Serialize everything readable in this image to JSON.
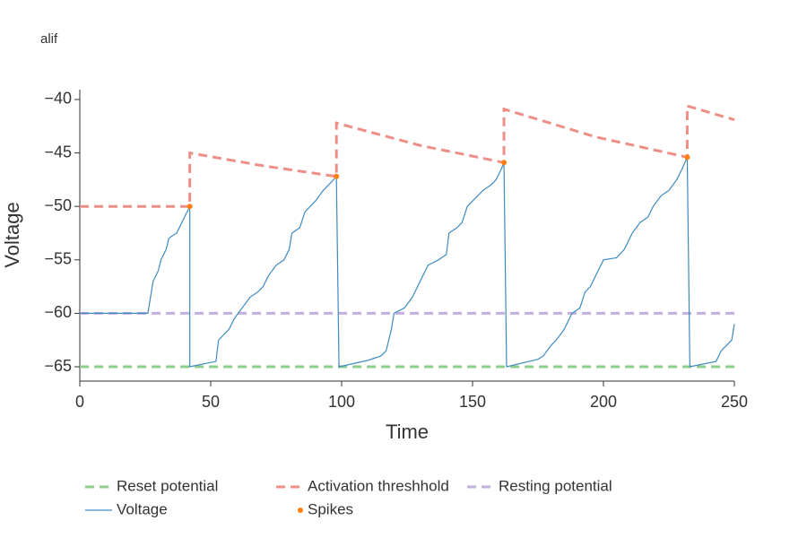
{
  "chart_data": {
    "type": "line",
    "title": "alif",
    "x_label": "Time",
    "y_label": "Voltage",
    "xlim": [
      0,
      250
    ],
    "ylim": [
      -66.34,
      -39.08
    ],
    "xticks": [
      0,
      50,
      100,
      150,
      200,
      250
    ],
    "yticks": [
      {
        "value": -65,
        "label": "−65"
      },
      {
        "value": -60,
        "label": "−60"
      },
      {
        "value": -55,
        "label": "−55"
      },
      {
        "value": -50,
        "label": "−50"
      },
      {
        "value": -45,
        "label": "−45"
      },
      {
        "value": -40,
        "label": "−40"
      }
    ],
    "grid": false,
    "legend": "bottom",
    "series": [
      {
        "name": "Reset potential",
        "color": "#90cc8c",
        "style": "dashed",
        "x": [
          0,
          250
        ],
        "values": [
          -65,
          -65
        ]
      },
      {
        "name": "Activation threshhold",
        "color": "#ee8f87",
        "style": "dashed",
        "x": [
          0,
          42,
          42,
          70,
          98,
          98,
          130,
          162,
          162,
          197,
          232,
          232,
          250
        ],
        "values": [
          -50,
          -50,
          -45,
          -46.2,
          -47.2,
          -42.2,
          -44.3,
          -45.9,
          -40.9,
          -43.5,
          -45.4,
          -40.6,
          -41.9
        ]
      },
      {
        "name": "Resting potential",
        "color": "#c5aee0",
        "style": "dashed",
        "x": [
          0,
          250
        ],
        "values": [
          -60,
          -60
        ]
      },
      {
        "name": "Voltage",
        "color": "#3f8bc0",
        "style": "solid",
        "x": [
          0,
          26,
          27,
          28,
          30,
          31,
          33,
          34,
          35,
          37,
          39,
          40,
          42,
          42,
          52,
          53,
          55,
          57,
          59,
          62,
          65,
          68,
          70,
          72,
          75,
          78,
          80,
          81,
          84,
          86,
          88,
          90,
          93,
          95,
          98,
          99,
          110,
          115,
          117,
          118,
          119,
          120,
          124,
          127,
          129,
          131,
          133,
          137,
          140,
          141,
          144,
          146,
          148,
          150,
          152,
          154,
          157,
          159,
          161,
          162,
          163,
          175,
          177,
          180,
          182,
          185,
          188,
          191,
          193,
          195,
          198,
          200,
          205,
          208,
          211,
          214,
          217,
          219,
          222,
          225,
          228,
          230,
          232,
          233,
          243,
          245,
          247,
          249,
          250
        ],
        "values": [
          -60,
          -60,
          -58.5,
          -57,
          -56,
          -55,
          -54,
          -53,
          -52.8,
          -52.5,
          -51.5,
          -51,
          -50,
          -65,
          -64.5,
          -62.5,
          -62,
          -61.5,
          -60.5,
          -59.5,
          -58.5,
          -58,
          -57.5,
          -56.5,
          -55.5,
          -55,
          -54,
          -52.5,
          -52,
          -50.5,
          -50,
          -49.5,
          -48.5,
          -48,
          -47.2,
          -65,
          -64.4,
          -64,
          -63.5,
          -62.5,
          -61.5,
          -60,
          -59.5,
          -58.5,
          -57.5,
          -56.5,
          -55.5,
          -55,
          -54.5,
          -52.5,
          -52,
          -51.5,
          -50,
          -49.5,
          -49,
          -48.5,
          -48,
          -47.5,
          -46.5,
          -45.9,
          -65,
          -64.3,
          -64,
          -63,
          -62.5,
          -61.5,
          -60,
          -59.5,
          -58,
          -57.5,
          -56,
          -55,
          -54.8,
          -54,
          -52.5,
          -51.5,
          -51,
          -50,
          -49,
          -48.5,
          -47.5,
          -46.5,
          -45.4,
          -65,
          -64.5,
          -63.5,
          -63,
          -62.5,
          -61
        ]
      },
      {
        "name": "Spikes",
        "color": "#ff7f0e",
        "style": "markers",
        "x": [
          42,
          98,
          162,
          232
        ],
        "values": [
          -50,
          -47.2,
          -45.9,
          -45.4
        ]
      }
    ]
  }
}
